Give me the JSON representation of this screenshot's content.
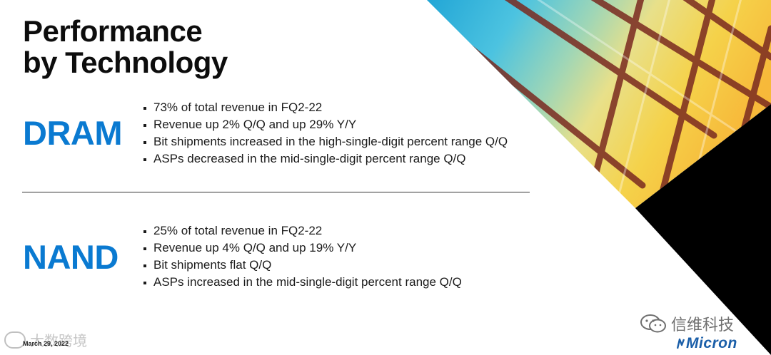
{
  "slide": {
    "title_line1": "Performance",
    "title_line2": "by Technology",
    "dram": {
      "label": "DRAM",
      "bullets": [
        "73% of total revenue in FQ2-22",
        "Revenue up 2% Q/Q and up 29% Y/Y",
        "Bit shipments increased in the high-single-digit percent range Q/Q",
        "ASPs decreased in the mid-single-digit percent range Q/Q"
      ]
    },
    "nand": {
      "label": "NAND",
      "bullets": [
        "25% of total revenue in FQ2-22",
        "Revenue up 4% Q/Q and up 19% Y/Y",
        "Bit shipments flat Q/Q",
        "ASPs increased in the mid-single-digit percent range Q/Q"
      ]
    },
    "date": "March 29, 2022",
    "logo_text": "Micron"
  },
  "watermarks": {
    "left_text": "大数跨境",
    "right_text": "信维科技"
  },
  "colors": {
    "accent_blue": "#0a7ad1",
    "title_black": "#0d0d0d",
    "corner_black": "#000000",
    "logo_blue": "#1a5ea8"
  }
}
